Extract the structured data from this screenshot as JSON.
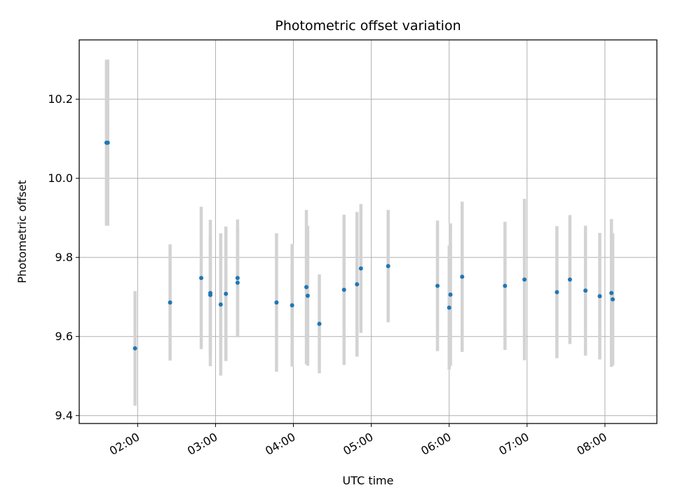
{
  "chart_data": {
    "type": "scatter",
    "title": "Photometric offset variation",
    "xlabel": "UTC time",
    "ylabel": "Photometric offset",
    "x_tick_labels": [
      "02:00",
      "03:00",
      "04:00",
      "05:00",
      "06:00",
      "07:00",
      "08:00"
    ],
    "x_tick_hours": [
      2,
      3,
      4,
      5,
      6,
      7,
      8
    ],
    "y_ticks": [
      9.4,
      9.6,
      9.8,
      10.0,
      10.2
    ],
    "y_tick_labels": [
      "9.4",
      "9.6",
      "9.8",
      "10.0",
      "10.2"
    ],
    "xlim": [
      "01:15",
      "08:40"
    ],
    "ylim": [
      9.38,
      10.35
    ],
    "grid": true,
    "colors": {
      "point": "#1f77b4",
      "errorbar": "#d3d3d3",
      "grid": "#b0b0b0"
    },
    "points": [
      {
        "t": "01:36",
        "y": 10.09,
        "err": 0.21
      },
      {
        "t": "01:37",
        "y": 10.09,
        "err": 0.21
      },
      {
        "t": "01:58",
        "y": 9.57,
        "err": 0.145
      },
      {
        "t": "02:25",
        "y": 9.686,
        "err": 0.147
      },
      {
        "t": "02:49",
        "y": 9.748,
        "err": 0.18
      },
      {
        "t": "02:56",
        "y": 9.71,
        "err": 0.185
      },
      {
        "t": "02:56",
        "y": 9.705,
        "err": 0.15
      },
      {
        "t": "03:04",
        "y": 9.681,
        "err": 0.18
      },
      {
        "t": "03:08",
        "y": 9.708,
        "err": 0.17
      },
      {
        "t": "03:17",
        "y": 9.748,
        "err": 0.148
      },
      {
        "t": "03:17",
        "y": 9.736,
        "err": 0.138
      },
      {
        "t": "03:47",
        "y": 9.686,
        "err": 0.175
      },
      {
        "t": "03:59",
        "y": 9.679,
        "err": 0.155
      },
      {
        "t": "04:10",
        "y": 9.725,
        "err": 0.195
      },
      {
        "t": "04:11",
        "y": 9.703,
        "err": 0.177
      },
      {
        "t": "04:20",
        "y": 9.632,
        "err": 0.125
      },
      {
        "t": "04:39",
        "y": 9.718,
        "err": 0.19
      },
      {
        "t": "04:49",
        "y": 9.732,
        "err": 0.183
      },
      {
        "t": "04:52",
        "y": 9.772,
        "err": 0.163
      },
      {
        "t": "05:13",
        "y": 9.778,
        "err": 0.142
      },
      {
        "t": "05:51",
        "y": 9.728,
        "err": 0.165
      },
      {
        "t": "06:00",
        "y": 9.673,
        "err": 0.157
      },
      {
        "t": "06:01",
        "y": 9.706,
        "err": 0.18
      },
      {
        "t": "06:10",
        "y": 9.751,
        "err": 0.19
      },
      {
        "t": "06:43",
        "y": 9.728,
        "err": 0.162
      },
      {
        "t": "06:58",
        "y": 9.744,
        "err": 0.204
      },
      {
        "t": "07:23",
        "y": 9.712,
        "err": 0.167
      },
      {
        "t": "07:33",
        "y": 9.744,
        "err": 0.163
      },
      {
        "t": "07:45",
        "y": 9.716,
        "err": 0.164
      },
      {
        "t": "07:56",
        "y": 9.702,
        "err": 0.16
      },
      {
        "t": "08:05",
        "y": 9.71,
        "err": 0.187
      },
      {
        "t": "08:06",
        "y": 9.694,
        "err": 0.167
      }
    ]
  }
}
